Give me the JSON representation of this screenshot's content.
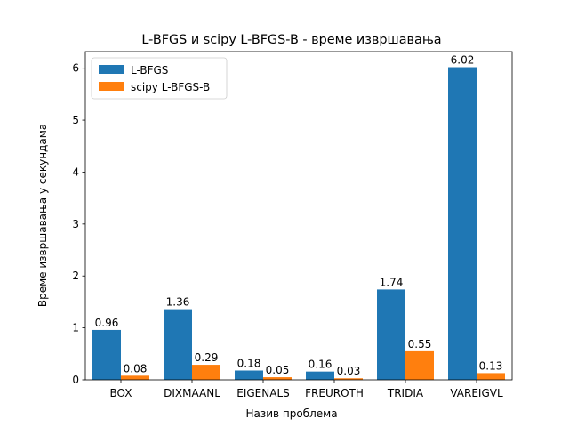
{
  "chart_data": {
    "type": "bar",
    "title": "L-BFGS и scipy L-BFGS-B - време извршавања",
    "xlabel": "Назив проблема",
    "ylabel": "Време извршавања у секундама",
    "categories": [
      "BOX",
      "DIXMAANL",
      "EIGENALS",
      "FREUROTH",
      "TRIDIA",
      "VAREIGVL"
    ],
    "series": [
      {
        "name": "L-BFGS",
        "values": [
          0.96,
          1.36,
          0.18,
          0.16,
          1.74,
          6.02
        ],
        "color": "#1f77b4"
      },
      {
        "name": "scipy L-BFGS-B",
        "values": [
          0.08,
          0.29,
          0.05,
          0.03,
          0.55,
          0.13
        ],
        "color": "#ff7f0e"
      }
    ],
    "data_labels": [
      [
        "0.96",
        "1.36",
        "0.18",
        "0.16",
        "1.74",
        "6.02"
      ],
      [
        "0.08",
        "0.29",
        "0.05",
        "0.03",
        "0.55",
        "0.13"
      ]
    ],
    "ylim": [
      0,
      6.32
    ],
    "yticks": [
      0,
      1,
      2,
      3,
      4,
      5,
      6
    ],
    "grid": false,
    "legend_position": "top-left"
  }
}
